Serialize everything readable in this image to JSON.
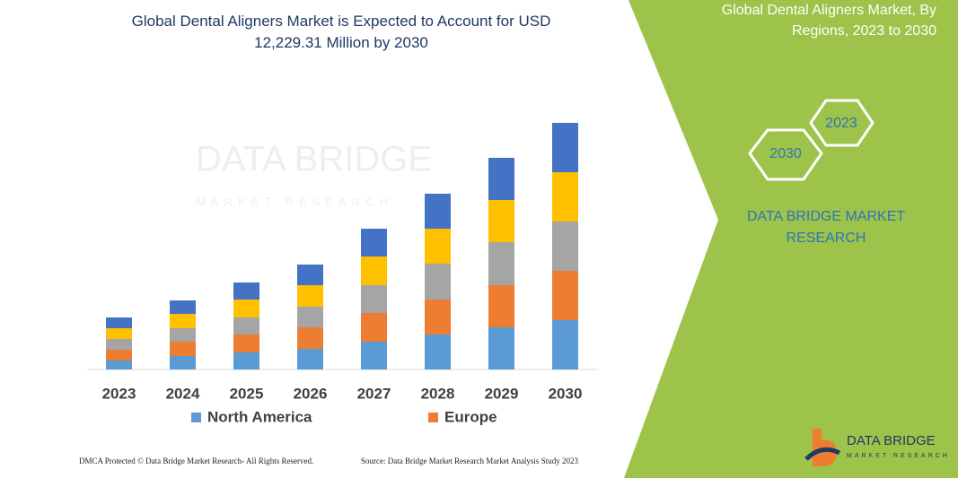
{
  "chart_data": {
    "type": "bar",
    "stacked": true,
    "title": "Global Dental Aligners Market is Expected to Account for USD 12,229.31 Million by 2030",
    "categories": [
      "2023",
      "2024",
      "2025",
      "2026",
      "2027",
      "2028",
      "2029",
      "2030"
    ],
    "series": [
      {
        "name": "North America",
        "color": "#5b9bd5",
        "values": [
          10,
          15,
          19,
          23,
          31,
          39,
          47,
          55
        ]
      },
      {
        "name": "Europe",
        "color": "#ed7d31",
        "values": [
          12,
          16,
          20,
          24,
          32,
          39,
          47,
          55
        ]
      },
      {
        "color": "#a5a5a5",
        "values": [
          12,
          15,
          19,
          23,
          31,
          40,
          48,
          55
        ]
      },
      {
        "color": "#ffc000",
        "values": [
          12,
          16,
          20,
          24,
          32,
          39,
          47,
          55
        ]
      },
      {
        "color": "#4472c4",
        "values": [
          12,
          15,
          19,
          23,
          31,
          39,
          47,
          55
        ]
      }
    ],
    "ylim": [
      0,
      280
    ]
  },
  "watermark": {
    "name": "DATA BRIDGE",
    "tagline": "MARKET RESEARCH"
  },
  "panel": {
    "title": "Global Dental Aligners Market, By Regions, 2023 to 2030",
    "hexagons": [
      "2030",
      "2023"
    ],
    "brand": "DATA BRIDGE MARKET RESEARCH"
  },
  "footer": {
    "left": "DMCA Protected © Data Bridge Market Research- All Rights Reserved.",
    "right": "Source: Data Bridge Market Research  Market Analysis Study 2023"
  },
  "logo": {
    "name": "DATA BRIDGE",
    "tagline": "MARKET RESEARCH"
  }
}
